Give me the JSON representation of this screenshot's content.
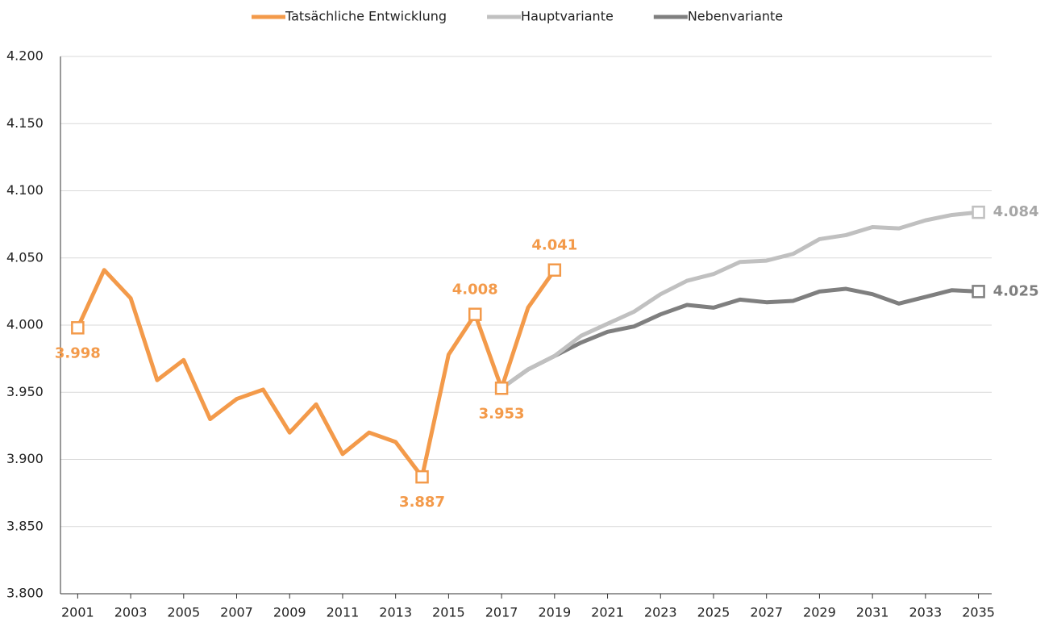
{
  "chart_data": {
    "type": "line",
    "series": [
      {
        "name": "Tatsächliche Entwicklung",
        "color": "#f39a4a",
        "x": [
          2001,
          2002,
          2003,
          2004,
          2005,
          2006,
          2007,
          2008,
          2009,
          2010,
          2011,
          2012,
          2013,
          2014,
          2015,
          2016,
          2017,
          2018,
          2019
        ],
        "values": [
          3998,
          4041,
          4020,
          3959,
          3974,
          3930,
          3945,
          3952,
          3920,
          3941,
          3904,
          3920,
          3913,
          3887,
          3978,
          4008,
          3953,
          4013,
          4041
        ],
        "value_labels": [
          "3.998",
          null,
          null,
          null,
          null,
          null,
          null,
          null,
          null,
          null,
          null,
          null,
          null,
          "3.887",
          null,
          "4.008",
          "3.953",
          null,
          "4.041"
        ]
      },
      {
        "name": "Hauptvariante",
        "color": "#c0c0c0",
        "x": [
          2017,
          2018,
          2019,
          2020,
          2021,
          2022,
          2023,
          2024,
          2025,
          2026,
          2027,
          2028,
          2029,
          2030,
          2031,
          2032,
          2033,
          2034,
          2035
        ],
        "values": [
          3953,
          3967,
          3977,
          3992,
          4001,
          4010,
          4023,
          4033,
          4038,
          4047,
          4048,
          4053,
          4064,
          4067,
          4073,
          4072,
          4078,
          4082,
          4084
        ],
        "value_labels": [
          null,
          null,
          null,
          null,
          null,
          null,
          null,
          null,
          null,
          null,
          null,
          null,
          null,
          null,
          null,
          null,
          null,
          null,
          "4.084"
        ]
      },
      {
        "name": "Nebenvariante",
        "color": "#7f7f7f",
        "x": [
          2017,
          2018,
          2019,
          2020,
          2021,
          2022,
          2023,
          2024,
          2025,
          2026,
          2027,
          2028,
          2029,
          2030,
          2031,
          2032,
          2033,
          2034,
          2035
        ],
        "values": [
          3953,
          3967,
          3977,
          3987,
          3995,
          3999,
          4008,
          4015,
          4013,
          4019,
          4017,
          4018,
          4025,
          4027,
          4023,
          4016,
          4021,
          4026,
          4025
        ],
        "value_labels": [
          null,
          null,
          null,
          null,
          null,
          null,
          null,
          null,
          null,
          null,
          null,
          null,
          null,
          null,
          null,
          null,
          null,
          null,
          "4.025"
        ]
      }
    ],
    "xlim": [
      2000.35,
      2035.5
    ],
    "xticks": [
      2001,
      2003,
      2005,
      2007,
      2009,
      2011,
      2013,
      2015,
      2017,
      2019,
      2021,
      2023,
      2025,
      2027,
      2029,
      2031,
      2033,
      2035
    ],
    "ylim": [
      3800,
      4200
    ],
    "yticks": [
      {
        "value": 3800,
        "label": "3.800"
      },
      {
        "value": 3850,
        "label": "3.850"
      },
      {
        "value": 3900,
        "label": "3.900"
      },
      {
        "value": 3950,
        "label": "3.950"
      },
      {
        "value": 4000,
        "label": "4.000"
      },
      {
        "value": 4050,
        "label": "4.050"
      },
      {
        "value": 4100,
        "label": "4.100"
      },
      {
        "value": 4150,
        "label": "4.150"
      },
      {
        "value": 4200,
        "label": "4.200"
      }
    ],
    "grid": true,
    "legend": "top"
  }
}
